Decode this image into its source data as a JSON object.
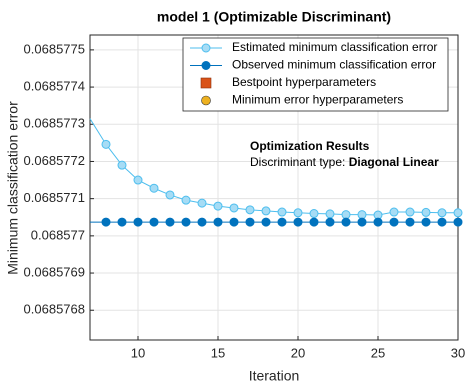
{
  "chart_data": {
    "type": "line",
    "title": "model 1 (Optimizable Discriminant)",
    "xlabel": "Iteration",
    "ylabel": "Minimum classification error",
    "x": [
      7,
      8,
      9,
      10,
      11,
      12,
      13,
      14,
      15,
      16,
      17,
      18,
      19,
      20,
      21,
      22,
      23,
      24,
      25,
      26,
      27,
      28,
      29,
      30
    ],
    "series": [
      {
        "name": "Estimated minimum classification error",
        "color": "#4dbeee",
        "marker_fill": "#a6dcf5",
        "values": [
          0.068577315,
          0.068577246,
          0.06857719,
          0.06857715,
          0.068577128,
          0.06857711,
          0.068577096,
          0.068577088,
          0.06857708,
          0.068577075,
          0.06857707,
          0.068577067,
          0.068577064,
          0.068577062,
          0.06857706,
          0.068577059,
          0.068577057,
          0.068577057,
          0.068577056,
          0.068577064,
          0.068577064,
          0.068577063,
          0.068577062,
          0.068577062
        ]
      },
      {
        "name": "Observed minimum classification error",
        "color": "#0072bd",
        "marker_fill": "#0072bd",
        "values": [
          0.068577037,
          0.068577037,
          0.068577037,
          0.068577037,
          0.068577037,
          0.068577037,
          0.068577037,
          0.068577037,
          0.068577037,
          0.068577037,
          0.068577037,
          0.068577037,
          0.068577037,
          0.068577037,
          0.068577037,
          0.068577037,
          0.068577037,
          0.068577037,
          0.068577037,
          0.068577037,
          0.068577037,
          0.068577037,
          0.068577037,
          0.068577037
        ]
      }
    ],
    "legend_markers": [
      {
        "name": "Bestpoint hyperparameters",
        "color": "#d95319",
        "marker": "square"
      },
      {
        "name": "Minimum error hyperparameters",
        "color": "#edb120",
        "marker": "circle"
      }
    ],
    "annotation": {
      "title": "Optimization Results",
      "label": "Discriminant type:",
      "value": "Diagonal Linear"
    },
    "xlim": [
      7,
      30
    ],
    "xticks": [
      10,
      15,
      20,
      25,
      30
    ],
    "ylim": [
      0.06857672,
      0.06857754
    ],
    "yticks": [
      0.0685768,
      0.0685769,
      0.068577,
      0.0685771,
      0.0685772,
      0.0685773,
      0.0685774,
      0.0685775
    ],
    "grid": true
  }
}
